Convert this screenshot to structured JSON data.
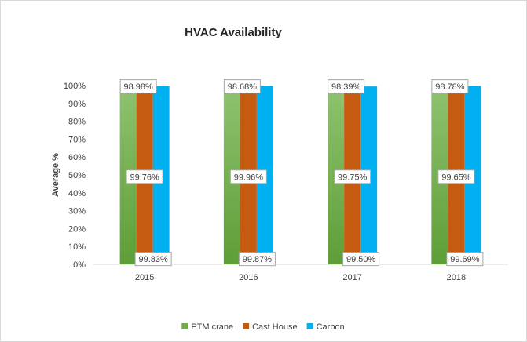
{
  "chart_data": {
    "type": "bar",
    "title": "HVAC Availability",
    "ylabel": "Average %",
    "xlabel": "",
    "categories": [
      "2015",
      "2016",
      "2017",
      "2018"
    ],
    "series": [
      {
        "name": "PTM crane",
        "values": [
          98.98,
          98.68,
          98.39,
          98.78
        ],
        "labels": [
          "98.98%",
          "98.68%",
          "98.39%",
          "98.78%"
        ],
        "color": "#70ad47"
      },
      {
        "name": "Cast House",
        "values": [
          99.76,
          99.96,
          99.75,
          99.65
        ],
        "labels": [
          "99.76%",
          "99.96%",
          "99.75%",
          "99.65%"
        ],
        "color": "#c55a11"
      },
      {
        "name": "Carbon",
        "values": [
          99.83,
          99.87,
          99.5,
          99.69
        ],
        "labels": [
          "99.83%",
          "99.87%",
          "99.50%",
          "99.69%"
        ],
        "color": "#00b0f0"
      }
    ],
    "ylim": [
      0,
      100
    ],
    "yticks": [
      "0%",
      "10%",
      "20%",
      "30%",
      "40%",
      "50%",
      "60%",
      "70%",
      "80%",
      "90%",
      "100%"
    ],
    "grid": false,
    "legend": "bottom"
  }
}
